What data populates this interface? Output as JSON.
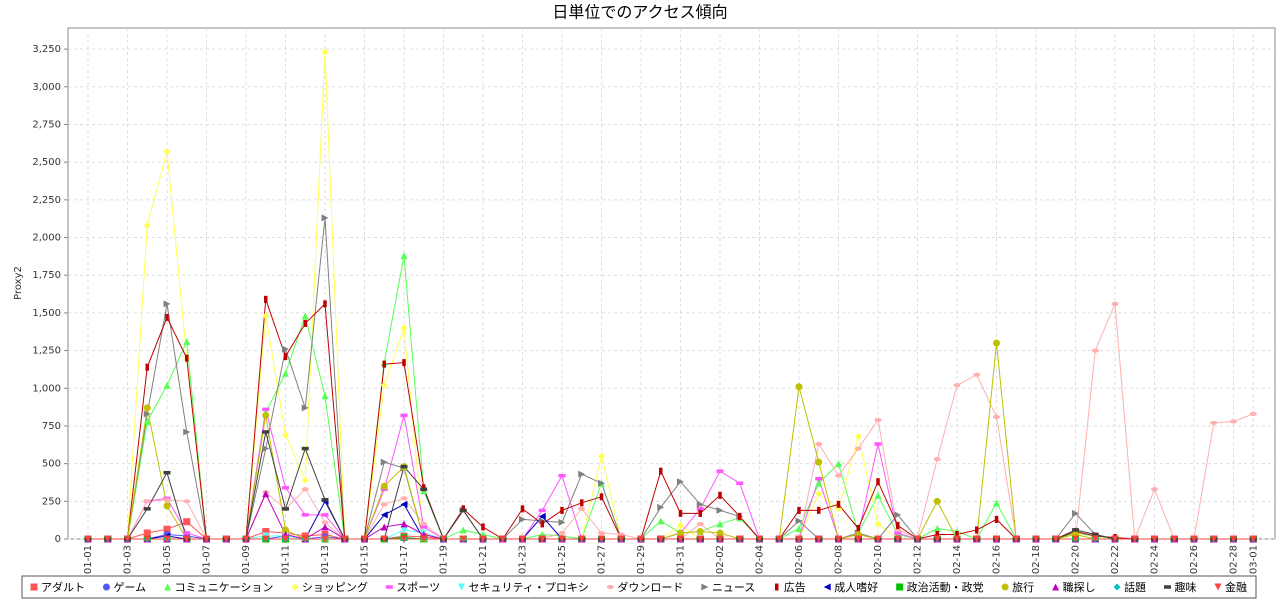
{
  "chart_data": {
    "type": "line",
    "title": "日単位でのアクセス傾向",
    "y_label": "Proxy2",
    "categories": [
      "01-01",
      null,
      "01-03",
      null,
      "01-05",
      null,
      "01-07",
      null,
      "01-09",
      null,
      "01-11",
      null,
      "01-13",
      null,
      "01-15",
      null,
      "01-17",
      null,
      "01-19",
      null,
      "01-21",
      null,
      "01-23",
      null,
      "01-25",
      null,
      "01-27",
      null,
      "01-29",
      null,
      "01-31",
      null,
      "02-02",
      null,
      "02-04",
      null,
      "02-06",
      null,
      "02-08",
      null,
      "02-10",
      null,
      "02-12",
      null,
      "02-14",
      null,
      "02-16",
      null,
      "02-18",
      null,
      "02-20",
      null,
      "02-22",
      null,
      "02-24",
      null,
      "02-26",
      null,
      "02-28",
      "03-01"
    ],
    "ylim": [
      0,
      3390
    ],
    "yticks": [
      0,
      250,
      500,
      750,
      {
        "value": 1000,
        "label": "1,000"
      },
      {
        "value": 1250,
        "label": "1,250"
      },
      {
        "value": 1500,
        "label": "1,500"
      },
      {
        "value": 1750,
        "label": "1,750"
      },
      {
        "value": 2000,
        "label": "2,000"
      },
      {
        "value": 2250,
        "label": "2,250"
      },
      {
        "value": 2500,
        "label": "2,500"
      },
      {
        "value": 2750,
        "label": "2,750"
      },
      {
        "value": 3000,
        "label": "3,000"
      },
      {
        "value": 3250,
        "label": "3,250"
      }
    ],
    "grid": true,
    "legend": "bottom",
    "series": [
      {
        "name": "アダルト",
        "color": "#ff5555",
        "marker": "square",
        "values": [
          0,
          0,
          0,
          40,
          65,
          115,
          0,
          0,
          0,
          50,
          40,
          20,
          30,
          0,
          0,
          0,
          20,
          15,
          0,
          0,
          0,
          0,
          0,
          0,
          0,
          0,
          0,
          0,
          0,
          0,
          0,
          0,
          0,
          0,
          0,
          0,
          0,
          0,
          0,
          0,
          0,
          0,
          0,
          0,
          0,
          0,
          0,
          0,
          0,
          0,
          0,
          0,
          0,
          0,
          0,
          0,
          0,
          0,
          0,
          0
        ]
      },
      {
        "name": "ゲーム",
        "color": "#5555ff",
        "marker": "circle",
        "values": [
          0,
          0,
          0,
          0,
          30,
          20,
          0,
          0,
          0,
          0,
          20,
          0,
          15,
          0,
          0,
          0,
          10,
          0,
          0,
          0,
          0,
          0,
          0,
          0,
          0,
          0,
          0,
          0,
          0,
          0,
          0,
          0,
          0,
          0,
          0,
          0,
          0,
          0,
          0,
          0,
          0,
          0,
          0,
          0,
          0,
          0,
          0,
          0,
          0,
          0,
          0,
          0,
          0,
          0,
          0,
          0,
          0,
          0,
          0,
          0
        ]
      },
      {
        "name": "コミュニケーション",
        "color": "#55ff55",
        "marker": "triangle-up",
        "values": [
          0,
          0,
          0,
          780,
          1020,
          1310,
          0,
          0,
          0,
          840,
          1100,
          1480,
          950,
          0,
          0,
          1170,
          1880,
          320,
          0,
          60,
          30,
          0,
          0,
          30,
          20,
          0,
          370,
          0,
          0,
          120,
          40,
          50,
          100,
          140,
          0,
          0,
          70,
          370,
          500,
          40,
          290,
          30,
          0,
          70,
          50,
          0,
          240,
          0,
          0,
          0,
          40,
          20,
          0,
          0,
          0,
          0,
          0,
          0,
          0,
          0
        ]
      },
      {
        "name": "ショッピング",
        "color": "#ffff55",
        "marker": "diamond",
        "values": [
          0,
          0,
          0,
          2080,
          2570,
          1200,
          0,
          0,
          0,
          1480,
          690,
          390,
          3230,
          0,
          0,
          1020,
          1400,
          0,
          0,
          0,
          0,
          0,
          0,
          0,
          0,
          0,
          550,
          0,
          0,
          0,
          90,
          0,
          0,
          0,
          0,
          0,
          0,
          300,
          200,
          680,
          100,
          0,
          0,
          0,
          0,
          0,
          0,
          0,
          0,
          0,
          0,
          0,
          0,
          0,
          0,
          0,
          0,
          0,
          0,
          0
        ]
      },
      {
        "name": "スポーツ",
        "color": "#ff55ff",
        "marker": "hrect",
        "values": [
          0,
          0,
          0,
          250,
          270,
          40,
          0,
          0,
          0,
          860,
          340,
          160,
          160,
          0,
          0,
          330,
          820,
          80,
          0,
          0,
          0,
          0,
          0,
          190,
          420,
          0,
          0,
          0,
          0,
          0,
          40,
          200,
          450,
          370,
          0,
          0,
          0,
          400,
          0,
          30,
          630,
          40,
          0,
          0,
          0,
          0,
          0,
          0,
          0,
          0,
          0,
          0,
          0,
          0,
          0,
          0,
          0,
          0,
          0,
          0
        ]
      },
      {
        "name": "セキュリティ・プロキシ",
        "color": "#55ffff",
        "marker": "triangle-down",
        "values": [
          0,
          0,
          0,
          0,
          0,
          0,
          0,
          0,
          0,
          20,
          20,
          0,
          0,
          0,
          0,
          0,
          60,
          40,
          0,
          0,
          0,
          0,
          0,
          0,
          0,
          0,
          0,
          0,
          0,
          0,
          0,
          0,
          0,
          0,
          0,
          0,
          0,
          0,
          0,
          0,
          0,
          0,
          0,
          0,
          0,
          0,
          0,
          0,
          0,
          0,
          0,
          0,
          0,
          0,
          0,
          0,
          0,
          0,
          0,
          0
        ]
      },
      {
        "name": "ダウンロード",
        "color": "#ffafaf",
        "marker": "ellipse",
        "values": [
          0,
          0,
          0,
          250,
          260,
          250,
          0,
          0,
          0,
          310,
          200,
          330,
          110,
          0,
          0,
          230,
          270,
          100,
          0,
          0,
          0,
          0,
          0,
          0,
          40,
          200,
          40,
          30,
          0,
          0,
          0,
          100,
          0,
          0,
          0,
          0,
          0,
          630,
          420,
          600,
          790,
          60,
          10,
          530,
          1020,
          1090,
          810,
          0,
          0,
          0,
          0,
          1250,
          1560,
          0,
          330,
          0,
          0,
          770,
          780,
          830
        ]
      },
      {
        "name": "ニュース",
        "color": "#808080",
        "marker": "triangle-right",
        "values": [
          0,
          0,
          0,
          830,
          1560,
          710,
          0,
          0,
          0,
          600,
          1260,
          870,
          2130,
          0,
          0,
          510,
          470,
          0,
          0,
          190,
          0,
          0,
          130,
          120,
          110,
          430,
          370,
          0,
          0,
          210,
          380,
          230,
          190,
          150,
          0,
          0,
          120,
          0,
          0,
          40,
          0,
          160,
          0,
          0,
          0,
          0,
          0,
          0,
          0,
          0,
          170,
          30,
          0,
          0,
          0,
          0,
          0,
          0,
          0,
          0
        ]
      },
      {
        "name": "広告",
        "color": "#c00000",
        "marker": "vrect",
        "values": [
          0,
          0,
          0,
          1140,
          1470,
          1200,
          0,
          0,
          0,
          1590,
          1210,
          1430,
          1560,
          0,
          0,
          1160,
          1170,
          340,
          0,
          200,
          80,
          0,
          200,
          100,
          190,
          240,
          280,
          0,
          0,
          450,
          170,
          170,
          290,
          150,
          0,
          0,
          190,
          190,
          230,
          70,
          380,
          90,
          0,
          30,
          30,
          60,
          130,
          0,
          0,
          0,
          50,
          20,
          10,
          0,
          0,
          0,
          0,
          0,
          0,
          0
        ]
      },
      {
        "name": "成人嗜好",
        "color": "#0000c0",
        "marker": "triangle-left",
        "values": [
          0,
          0,
          0,
          0,
          20,
          0,
          0,
          0,
          0,
          0,
          0,
          0,
          250,
          0,
          0,
          160,
          230,
          0,
          0,
          0,
          0,
          0,
          0,
          150,
          0,
          0,
          0,
          0,
          0,
          0,
          0,
          0,
          0,
          0,
          0,
          0,
          0,
          0,
          0,
          0,
          0,
          0,
          0,
          0,
          0,
          0,
          0,
          0,
          0,
          0,
          0,
          0,
          0,
          0,
          0,
          0,
          0,
          0,
          0,
          0
        ]
      },
      {
        "name": "政治活動・政党",
        "color": "#00c000",
        "marker": "square",
        "values": [
          0,
          0,
          0,
          0,
          0,
          0,
          0,
          0,
          0,
          0,
          0,
          0,
          0,
          0,
          0,
          0,
          10,
          0,
          0,
          0,
          0,
          0,
          0,
          0,
          0,
          0,
          0,
          0,
          0,
          0,
          0,
          0,
          0,
          0,
          0,
          0,
          0,
          0,
          0,
          0,
          0,
          0,
          0,
          0,
          0,
          0,
          0,
          0,
          0,
          0,
          0,
          0,
          0,
          0,
          0,
          0,
          0,
          0,
          0,
          0
        ]
      },
      {
        "name": "旅行",
        "color": "#c0c000",
        "marker": "circle",
        "values": [
          0,
          0,
          0,
          870,
          220,
          0,
          0,
          0,
          0,
          820,
          60,
          0,
          0,
          0,
          0,
          350,
          480,
          0,
          0,
          0,
          0,
          0,
          0,
          0,
          0,
          0,
          0,
          0,
          0,
          0,
          40,
          50,
          40,
          0,
          0,
          0,
          1010,
          510,
          0,
          30,
          0,
          0,
          0,
          250,
          0,
          0,
          1300,
          0,
          0,
          0,
          30,
          0,
          0,
          0,
          0,
          0,
          0,
          0,
          0,
          0
        ]
      },
      {
        "name": "職探し",
        "color": "#c000c0",
        "marker": "triangle-up",
        "values": [
          0,
          0,
          0,
          0,
          0,
          0,
          0,
          0,
          0,
          300,
          30,
          0,
          80,
          0,
          0,
          80,
          100,
          30,
          0,
          0,
          0,
          0,
          0,
          0,
          0,
          0,
          0,
          0,
          0,
          0,
          0,
          0,
          0,
          0,
          0,
          0,
          0,
          0,
          0,
          0,
          0,
          0,
          0,
          0,
          0,
          0,
          0,
          0,
          0,
          0,
          0,
          0,
          0,
          0,
          0,
          0,
          0,
          0,
          0,
          0
        ]
      },
      {
        "name": "話題",
        "color": "#00c0c0",
        "marker": "diamond",
        "values": [
          0,
          0,
          0,
          0,
          0,
          0,
          0,
          0,
          0,
          0,
          0,
          0,
          0,
          0,
          0,
          0,
          0,
          0,
          0,
          0,
          0,
          0,
          0,
          0,
          0,
          0,
          0,
          0,
          0,
          0,
          0,
          0,
          0,
          0,
          0,
          0,
          0,
          0,
          0,
          0,
          0,
          0,
          0,
          0,
          0,
          0,
          0,
          0,
          0,
          0,
          0,
          0,
          0,
          0,
          0,
          0,
          0,
          0,
          0,
          0
        ]
      },
      {
        "name": "趣味",
        "color": "#404040",
        "marker": "hrect",
        "values": [
          0,
          0,
          0,
          200,
          440,
          0,
          0,
          0,
          0,
          710,
          200,
          600,
          260,
          0,
          0,
          0,
          480,
          330,
          0,
          190,
          0,
          0,
          0,
          0,
          0,
          0,
          0,
          0,
          0,
          0,
          0,
          0,
          0,
          0,
          0,
          0,
          0,
          0,
          0,
          0,
          0,
          0,
          0,
          0,
          0,
          0,
          0,
          0,
          0,
          0,
          60,
          30,
          0,
          0,
          0,
          0,
          0,
          0,
          0,
          0
        ]
      },
      {
        "name": "金融",
        "color": "#ff4040",
        "marker": "triangle-down",
        "values": [
          0,
          0,
          0,
          0,
          0,
          0,
          0,
          0,
          0,
          0,
          0,
          0,
          0,
          0,
          0,
          0,
          0,
          0,
          0,
          0,
          0,
          0,
          0,
          0,
          0,
          0,
          0,
          0,
          0,
          0,
          0,
          0,
          0,
          0,
          0,
          0,
          0,
          0,
          0,
          0,
          0,
          0,
          0,
          0,
          0,
          0,
          0,
          0,
          0,
          0,
          0,
          0,
          0,
          0,
          0,
          0,
          0,
          0,
          0,
          0
        ]
      }
    ]
  }
}
